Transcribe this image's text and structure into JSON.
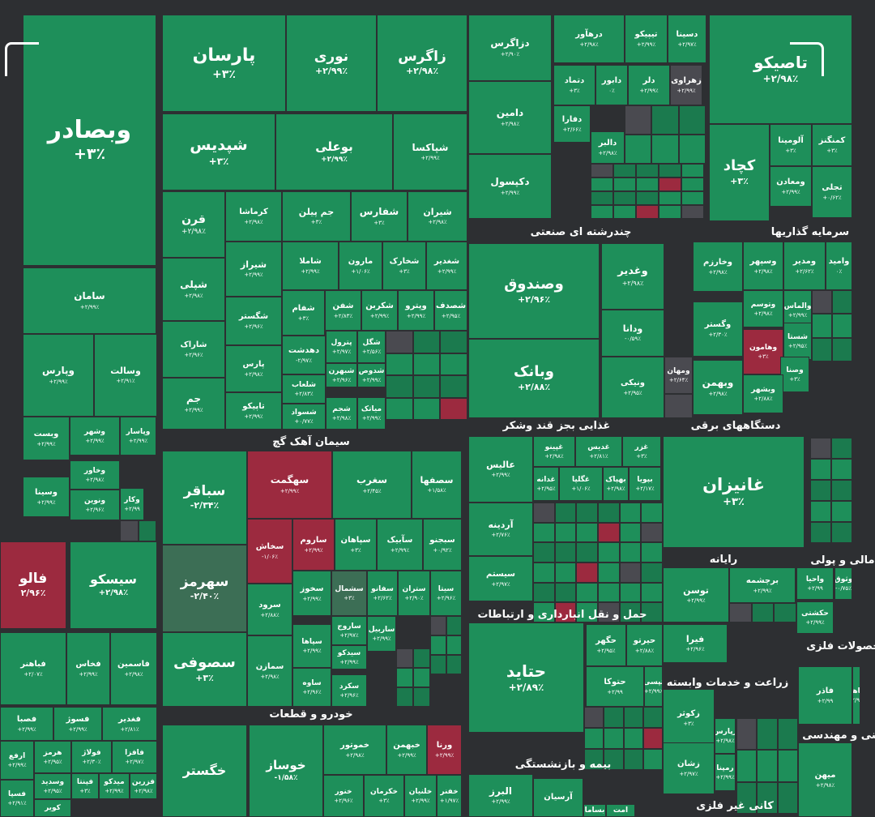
{
  "chart_data": {
    "type": "treemap",
    "colors": {
      "positive": "#1e8f5a",
      "positive_dark": "#1b7a4e",
      "negative": "#9c2a3f",
      "neutral": "#4a4a50",
      "neutral_green": "#3c6e55"
    },
    "sectors": [
      "چندرشته ای صنعتی",
      "سرمایه گذاریها",
      "سیمان آهک گچ",
      "غذایی بجز قند وشکر",
      "دستگاههای برقی",
      "رایانه",
      "مالی و پولی",
      "حمل و نقل انبارداری و ارتباطات",
      "محصولات فلزی",
      "زراعت و خدمات وابسته",
      "خودرو و قطعات",
      "فنی و مهندسی",
      "بیمه و بازنشستگی",
      "کانی غیر فلزی"
    ],
    "tiles": [
      {
        "name": "وبصادر",
        "change": "+۳٪"
      },
      {
        "name": "پارسان",
        "change": "+۳٪"
      },
      {
        "name": "نوری",
        "change": "+۲/۹۹٪"
      },
      {
        "name": "زاگرس",
        "change": "+۲/۹۸٪"
      },
      {
        "name": "شپدیس",
        "change": "+۳٪"
      },
      {
        "name": "بوعلی",
        "change": "+۲/۹۹٪"
      },
      {
        "name": "شپاکسا",
        "change": "+۲/۹۹٪"
      },
      {
        "name": "قرن",
        "change": "+۲/۹۸٪"
      },
      {
        "name": "کرماشا",
        "change": "+۲/۹۸٪"
      },
      {
        "name": "جم پیلن",
        "change": "+۳٪"
      },
      {
        "name": "شفارس",
        "change": "+۳٪"
      },
      {
        "name": "شیران",
        "change": "+۲/۹۸٪"
      },
      {
        "name": "سامان",
        "change": "+۲/۹۹٪"
      },
      {
        "name": "شپلی",
        "change": "+۲/۹۸٪"
      },
      {
        "name": "شیراز",
        "change": "+۲/۹۹٪"
      },
      {
        "name": "شاملا",
        "change": "+۲/۹۹٪"
      },
      {
        "name": "مارون",
        "change": "+۱/۰۶٪"
      },
      {
        "name": "شخارک",
        "change": "+۳٪"
      },
      {
        "name": "شغدیر",
        "change": "+۲/۹۹٪"
      },
      {
        "name": "شگستر",
        "change": "+۲/۹۶٪"
      },
      {
        "name": "شفام",
        "change": "+۳٪"
      },
      {
        "name": "شفن",
        "change": "+۲/۸۳٪"
      },
      {
        "name": "شکربن",
        "change": "+۲/۹۹٪"
      },
      {
        "name": "وپترو",
        "change": "+۲/۹۹٪"
      },
      {
        "name": "شصدف",
        "change": "+۲/۹۵٪"
      },
      {
        "name": "شاراک",
        "change": "+۲/۹۶٪"
      },
      {
        "name": "وپارس",
        "change": "+۲/۹۹٪"
      },
      {
        "name": "وسالت",
        "change": "+۲/۹۱٪"
      },
      {
        "name": "دهدشت",
        "change": "-۲/۹۷٪"
      },
      {
        "name": "پترول",
        "change": "+۲/۹۷٪"
      },
      {
        "name": "شگل",
        "change": "+۲/۵۶٪"
      },
      {
        "name": "پارس",
        "change": "+۲/۹۸٪"
      },
      {
        "name": "شبهرن",
        "change": "+۲/۹۶٪"
      },
      {
        "name": "شدوص",
        "change": "+۲/۹۹٪"
      },
      {
        "name": "شلعاب",
        "change": "+۲/۸۳٪"
      },
      {
        "name": "جم",
        "change": "+۲/۹۹٪"
      },
      {
        "name": "تاپیکو",
        "change": "+۲/۹۹٪"
      },
      {
        "name": "شسواد",
        "change": "+۰/۷۷٪"
      },
      {
        "name": "شجم",
        "change": "+۲/۹۸٪"
      },
      {
        "name": "میاتک",
        "change": "+۲/۹۹٪"
      },
      {
        "name": "وبست",
        "change": "+۲/۹۹٪"
      },
      {
        "name": "وشهر",
        "change": "+۲/۹۹٪"
      },
      {
        "name": "وپاسار",
        "change": "+۲/۹۹٪"
      },
      {
        "name": "وخاور",
        "change": "+۲/۹۸٪"
      },
      {
        "name": "وسینا",
        "change": "+۲/۹۹٪"
      },
      {
        "name": "ونوین",
        "change": "+۲/۹۶٪"
      },
      {
        "name": "وکار",
        "change": "+۲/۹۹"
      },
      {
        "name": "فالو",
        "change": "۲/۹۶٪"
      },
      {
        "name": "سیسکو",
        "change": "+۲/۹۸٪"
      },
      {
        "name": "فباهنر",
        "change": "+۲/۰۷٪"
      },
      {
        "name": "فخاس",
        "change": "+۲/۹۹٪"
      },
      {
        "name": "فاسمین",
        "change": "+۲/۹۸٪"
      },
      {
        "name": "فصبا",
        "change": "+۲/۹۹٪"
      },
      {
        "name": "فسوژ",
        "change": "+۲/۹۹٪"
      },
      {
        "name": "فغدیر",
        "change": "+۲/۸۱٪"
      },
      {
        "name": "ارفع",
        "change": "+۲/۹۹٪"
      },
      {
        "name": "هرمز",
        "change": "+۲/۹۵٪"
      },
      {
        "name": "فولاژ",
        "change": "+۲/۳۰٪"
      },
      {
        "name": "فافزا",
        "change": "+۲/۹۷٪"
      },
      {
        "name": "وسدید",
        "change": "+۲/۹۵٪"
      },
      {
        "name": "فپنتا",
        "change": "+۳٪"
      },
      {
        "name": "میدکو",
        "change": "+۲/۹۹٪"
      },
      {
        "name": "فزرین",
        "change": "+۲/۹۸٪"
      },
      {
        "name": "فسپا",
        "change": "+۲/۹۱٪"
      },
      {
        "name": "کویر",
        "change": ""
      },
      {
        "name": "سباقر",
        "change": "-۲/۳۴٪"
      },
      {
        "name": "سهگمت",
        "change": "+۲/۹۹٪"
      },
      {
        "name": "سغرب",
        "change": "+۲/۴۵٪"
      },
      {
        "name": "سصفها",
        "change": "+۱/۵۸٪"
      },
      {
        "name": "سهرمز",
        "change": "-۲/۴۰٪"
      },
      {
        "name": "سخاش",
        "change": "-۱/۰۶٪"
      },
      {
        "name": "ساروم",
        "change": "+۲/۹۹٪"
      },
      {
        "name": "سپاهان",
        "change": "+۳٪"
      },
      {
        "name": "سآبیک",
        "change": "+۲/۹۹٪"
      },
      {
        "name": "سبجنو",
        "change": "+۰/۹۲٪"
      },
      {
        "name": "سخوز",
        "change": "+۲/۹۹٪"
      },
      {
        "name": "سشمال",
        "change": "+۳٪"
      },
      {
        "name": "سفانو",
        "change": "+۲/۶۲٪"
      },
      {
        "name": "ستران",
        "change": "+۲/۹۰٪"
      },
      {
        "name": "سیتا",
        "change": "+۲/۹۶٪"
      },
      {
        "name": "سرود",
        "change": "+۲/۸۸٪"
      },
      {
        "name": "ساروج",
        "change": "+۲/۹۷٪"
      },
      {
        "name": "ساربیل",
        "change": "+۲/۹۹٪"
      },
      {
        "name": "سصوفی",
        "change": "+۳٪"
      },
      {
        "name": "سپاها",
        "change": "+۲/۹۹٪"
      },
      {
        "name": "سیدکو",
        "change": "+۲/۹۹٪"
      },
      {
        "name": "سمازن",
        "change": "+۲/۹۸٪"
      },
      {
        "name": "ساوه",
        "change": "+۲/۹۶٪"
      },
      {
        "name": "سکرد",
        "change": "+۲/۹۶٪"
      },
      {
        "name": "خگستر",
        "change": ""
      },
      {
        "name": "خوساز",
        "change": "-۱/۵۸٪"
      },
      {
        "name": "خموتور",
        "change": "+۲/۹۸٪"
      },
      {
        "name": "خبهمن",
        "change": "+۲/۹۹٪"
      },
      {
        "name": "ورنا",
        "change": "+۲/۹۹٪"
      },
      {
        "name": "خنور",
        "change": "+۲/۹۶٪"
      },
      {
        "name": "خکرمان",
        "change": "+۳٪"
      },
      {
        "name": "خلنیان",
        "change": "+۲/۹۹٪"
      },
      {
        "name": "خفنر",
        "change": "+۱/۹۷٪"
      },
      {
        "name": "دزاگرس",
        "change": "+۲/۹۰٪"
      },
      {
        "name": "درهآور",
        "change": "+۲/۹۸٪"
      },
      {
        "name": "تیپیکو",
        "change": "+۲/۹۹٪"
      },
      {
        "name": "دسینا",
        "change": "+۲/۹۷٪"
      },
      {
        "name": "تاصیکو",
        "change": "+۲/۹۸٪"
      },
      {
        "name": "دتماد",
        "change": "+۳٪"
      },
      {
        "name": "دابور",
        "change": "۰٪"
      },
      {
        "name": "دلر",
        "change": "+۲/۹۹٪"
      },
      {
        "name": "زهراوی",
        "change": "+۲/۹۹٪"
      },
      {
        "name": "دامین",
        "change": "+۲/۹۸٪"
      },
      {
        "name": "دفارا",
        "change": "+۲/۶۶٪"
      },
      {
        "name": "دالبر",
        "change": "+۲/۹۸٪"
      },
      {
        "name": "دکپسول",
        "change": "+۲/۹۹٪"
      },
      {
        "name": "کچاد",
        "change": "+۳٪"
      },
      {
        "name": "آلومینا",
        "change": "+۳٪"
      },
      {
        "name": "کمنگنز",
        "change": "+۳٪"
      },
      {
        "name": "ومعادن",
        "change": "+۲/۹۹٪"
      },
      {
        "name": "تجلی",
        "change": "+۰/۶۲٪"
      },
      {
        "name": "وصندوق",
        "change": "+۲/۹۶٪"
      },
      {
        "name": "وغدیر",
        "change": "+۲/۹۸٪"
      },
      {
        "name": "وخارزم",
        "change": "+۲/۹۸٪"
      },
      {
        "name": "وسپهر",
        "change": "+۲/۹۸٪"
      },
      {
        "name": "ومدیر",
        "change": "+۲/۶۲٪"
      },
      {
        "name": "وامید",
        "change": "۰٪"
      },
      {
        "name": "ودانا",
        "change": "-۰/۵۹٪"
      },
      {
        "name": "وتوسم",
        "change": "+۲/۹۸٪"
      },
      {
        "name": "والماس",
        "change": "+۲/۹۹٪"
      },
      {
        "name": "وگستر",
        "change": "+۲/۳۰٪"
      },
      {
        "name": "شستا",
        "change": "+۲/۹۵٪"
      },
      {
        "name": "وبانک",
        "change": "+۲/۸۸٪"
      },
      {
        "name": "ونیکی",
        "change": "+۲/۹۵٪"
      },
      {
        "name": "ومهان",
        "change": "+۲/۶۴٪"
      },
      {
        "name": "وهامون",
        "change": "+۳٪"
      },
      {
        "name": "وصنا",
        "change": "+۳٪"
      },
      {
        "name": "وبهمن",
        "change": "+۲/۹۸٪"
      },
      {
        "name": "وبشهر",
        "change": "+۲/۸۸٪"
      },
      {
        "name": "عالیس",
        "change": "+۲/۹۹٪"
      },
      {
        "name": "غپینو",
        "change": "+۲/۹۸٪"
      },
      {
        "name": "غدیس",
        "change": "+۲/۸۱٪"
      },
      {
        "name": "غزر",
        "change": "+۳٪"
      },
      {
        "name": "غدانه",
        "change": "+۲/۹۵٪"
      },
      {
        "name": "غگلپا",
        "change": "+۱/۰۶٪"
      },
      {
        "name": "بهپاک",
        "change": "+۲/۹۸٪"
      },
      {
        "name": "بپویا",
        "change": "+۲/۱۷٪"
      },
      {
        "name": "غانیزان",
        "change": "+۳٪"
      },
      {
        "name": "آردینه",
        "change": "+۲/۷۶٪"
      },
      {
        "name": "سیستم",
        "change": "+۲/۹۷٪"
      },
      {
        "name": "توسن",
        "change": "+۲/۹۹٪"
      },
      {
        "name": "برچشمه",
        "change": "+۲/۹۹٪"
      },
      {
        "name": "واحیا",
        "change": "+۲/۹۹"
      },
      {
        "name": "وثوق",
        "change": "-۰/۷۵٪"
      },
      {
        "name": "حکشتی",
        "change": "+۲/۹۹٪"
      },
      {
        "name": "حتاید",
        "change": "+۲/۸۹٪"
      },
      {
        "name": "حگهر",
        "change": "+۲/۹۵٪"
      },
      {
        "name": "حیرتو",
        "change": "+۲/۸۸٪"
      },
      {
        "name": "حتوکا",
        "change": "+۲/۹۹"
      },
      {
        "name": "تپسی",
        "change": "+۲/۹۹٪"
      },
      {
        "name": "فیرا",
        "change": "+۲/۹۶٪"
      },
      {
        "name": "فاذر",
        "change": "+۲/۹۹"
      },
      {
        "name": "زماهان",
        "change": "+۲/۹۸٪"
      },
      {
        "name": "زکوثر",
        "change": "+۳٪"
      },
      {
        "name": "زشان",
        "change": "+۲/۹۷٪"
      },
      {
        "name": "زپارس",
        "change": "+۲/۹۸٪"
      },
      {
        "name": "رمپنا",
        "change": "+۲/۹۹٪"
      },
      {
        "name": "میهن",
        "change": "+۲/۹۸٪"
      },
      {
        "name": "البرز",
        "change": "+۲/۹۹٪"
      },
      {
        "name": "آرسیان",
        "change": ""
      },
      {
        "name": "بساما",
        "change": ""
      },
      {
        "name": "امت",
        "change": ""
      }
    ]
  }
}
